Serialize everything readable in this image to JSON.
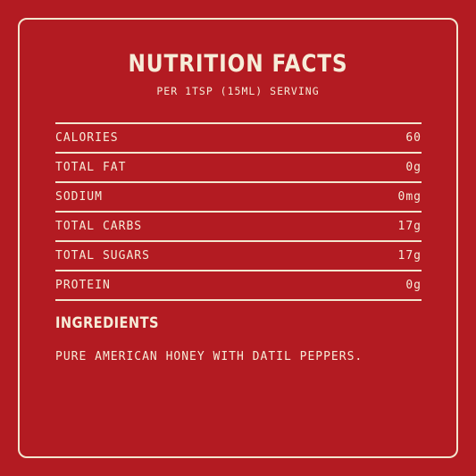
{
  "title": "NUTRITION FACTS",
  "serving": "PER 1TSP (15ML) SERVING",
  "nutrients": [
    {
      "label": "CALORIES",
      "value": "60"
    },
    {
      "label": "TOTAL FAT",
      "value": "0g"
    },
    {
      "label": "SODIUM",
      "value": "0mg"
    },
    {
      "label": "TOTAL CARBS",
      "value": "17g"
    },
    {
      "label": "TOTAL SUGARS",
      "value": "17g"
    },
    {
      "label": "PROTEIN",
      "value": "0g"
    }
  ],
  "ingredients": {
    "heading": "INGREDIENTS",
    "text": "PURE AMERICAN HONEY WITH DATIL PEPPERS."
  },
  "colors": {
    "background": "#b31b22",
    "text": "#f6ecd8"
  }
}
